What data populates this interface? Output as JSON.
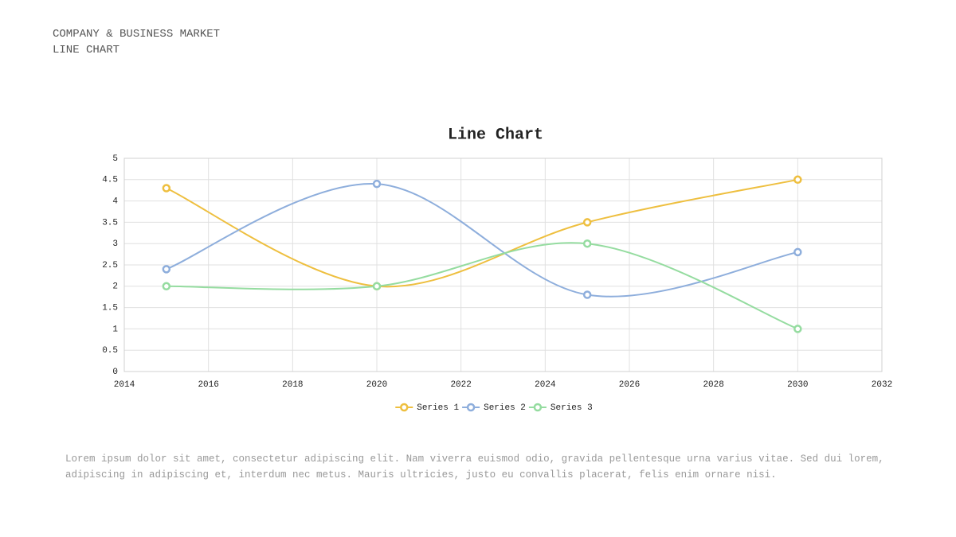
{
  "header": {
    "line1": "COMPANY & BUSINESS MARKET",
    "line2": "LINE CHART"
  },
  "chart_data": {
    "type": "line",
    "title": "Line Chart",
    "x": [
      2015,
      2020,
      2025,
      2030
    ],
    "series": [
      {
        "name": "Series 1",
        "color": "#eebf3f",
        "values": [
          4.3,
          2,
          3.5,
          4.5
        ]
      },
      {
        "name": "Series 2",
        "color": "#8eaedc",
        "values": [
          2.4,
          4.4,
          1.8,
          2.8
        ]
      },
      {
        "name": "Series 3",
        "color": "#95dca0",
        "values": [
          2,
          2,
          3,
          1
        ]
      }
    ],
    "xlim": [
      2014,
      2032
    ],
    "xticks": [
      2014,
      2016,
      2018,
      2020,
      2022,
      2024,
      2026,
      2028,
      2030,
      2032
    ],
    "ylim": [
      0,
      5
    ],
    "yticks": [
      0,
      0.5,
      1,
      1.5,
      2,
      2.5,
      3,
      3.5,
      4,
      4.5,
      5
    ],
    "grid": true,
    "smooth": true,
    "legend": "bottom"
  },
  "body": {
    "text": "Lorem ipsum dolor sit amet, consectetur adipiscing elit. Nam viverra euismod odio, gravida pellentesque urna varius vitae. Sed dui lorem, adipiscing in adipiscing et, interdum nec metus. Mauris ultricies, justo eu convallis placerat, felis enim ornare nisi."
  }
}
